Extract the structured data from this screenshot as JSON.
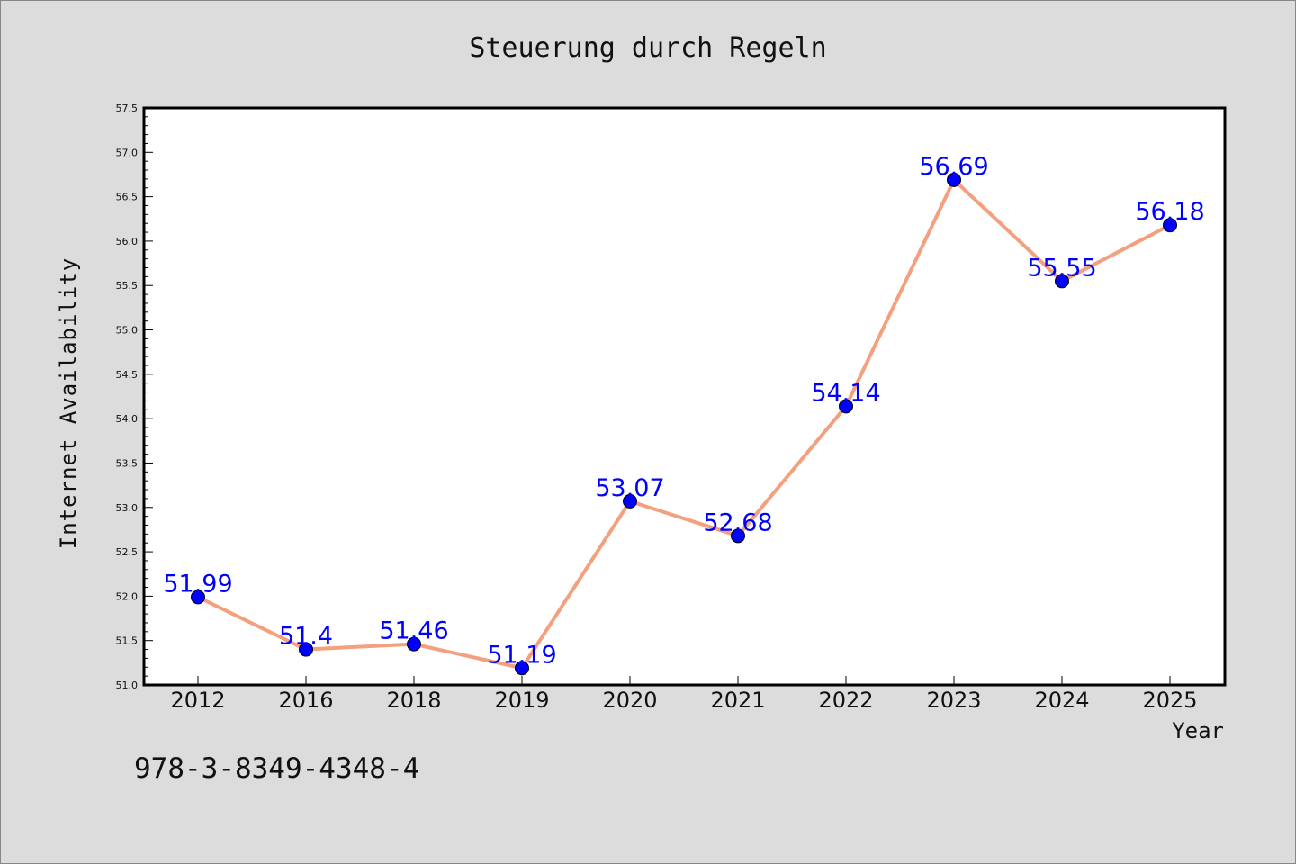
{
  "colors": {
    "background": "#dcdcdc",
    "plot_background": "#ffffff",
    "line": "#f4a07e",
    "marker": "#0000ff",
    "data_label": "#0000ff"
  },
  "isbn_text": "978-3-8349-4348-4",
  "chart_data": {
    "type": "line",
    "title": "Steuerung durch Regeln",
    "xlabel": "Year",
    "ylabel": "Internet Availability",
    "categories": [
      "2012",
      "2016",
      "2018",
      "2019",
      "2020",
      "2021",
      "2022",
      "2023",
      "2024",
      "2025"
    ],
    "series": [
      {
        "values": [
          51.99,
          51.4,
          51.46,
          51.19,
          53.07,
          52.68,
          54.14,
          56.69,
          55.55,
          56.18
        ],
        "data_labels": [
          "51.99",
          "51.4",
          "51.46",
          "51.19",
          "53.07",
          "52.68",
          "54.14",
          "56.69",
          "55.55",
          "56.18"
        ]
      }
    ],
    "ylim": [
      51.0,
      57.5
    ],
    "yticks": [
      51.0,
      51.5,
      52.0,
      52.5,
      53.0,
      53.5,
      54.0,
      54.5,
      55.0,
      55.5,
      56.0,
      56.5,
      57.0,
      57.5
    ],
    "ytick_labels": [
      "51.0",
      "51.5",
      "52.0",
      "52.5",
      "53.0",
      "53.5",
      "54.0",
      "54.5",
      "55.0",
      "55.5",
      "56.0",
      "56.5",
      "57.0",
      "57.5"
    ],
    "grid": false,
    "legend": "none"
  }
}
